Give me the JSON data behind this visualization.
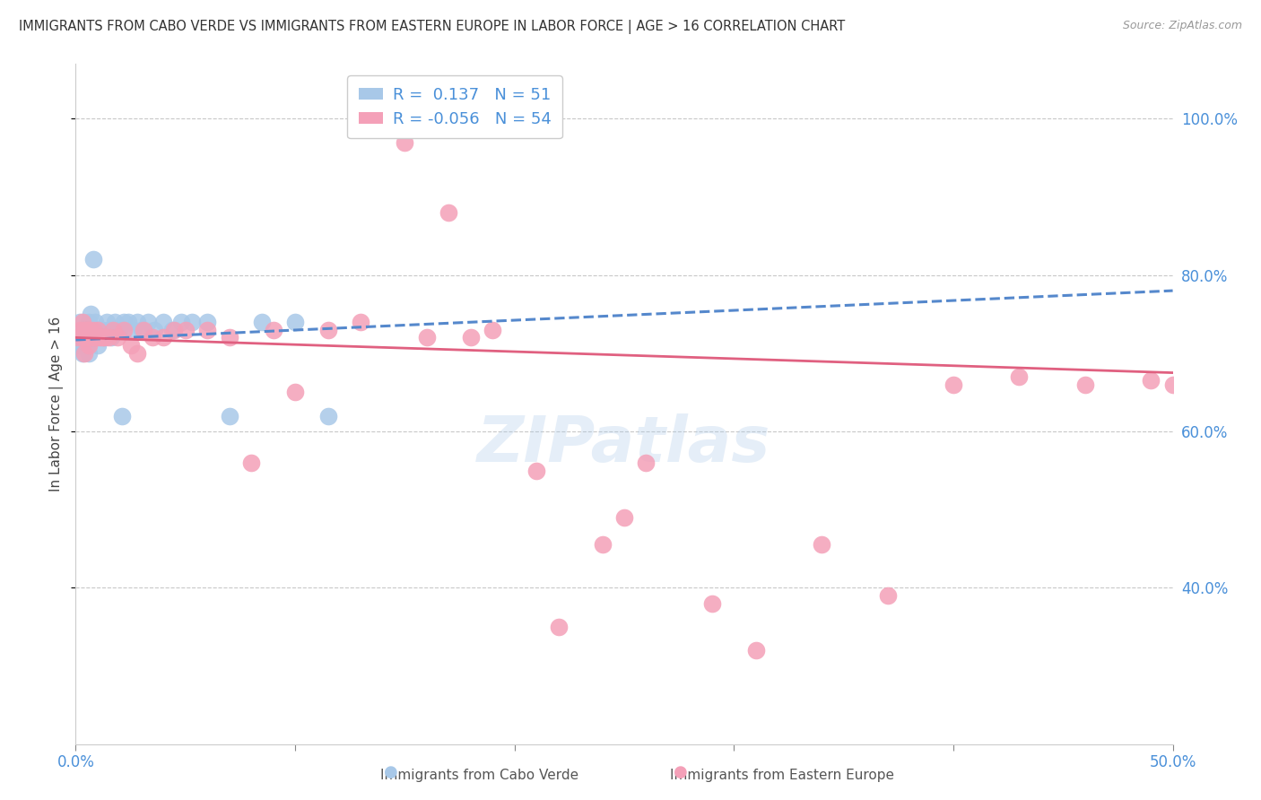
{
  "title": "IMMIGRANTS FROM CABO VERDE VS IMMIGRANTS FROM EASTERN EUROPE IN LABOR FORCE | AGE > 16 CORRELATION CHART",
  "source": "Source: ZipAtlas.com",
  "ylabel": "In Labor Force | Age > 16",
  "xlabel_cabo": "Immigrants from Cabo Verde",
  "xlabel_eastern": "Immigrants from Eastern Europe",
  "xlim": [
    0.0,
    0.5
  ],
  "ylim": [
    0.2,
    1.07
  ],
  "yticks": [
    0.4,
    0.6,
    0.8,
    1.0
  ],
  "ytick_labels": [
    "40.0%",
    "60.0%",
    "80.0%",
    "100.0%"
  ],
  "xticks": [
    0.0,
    0.1,
    0.2,
    0.3,
    0.4,
    0.5
  ],
  "xtick_labels": [
    "0.0%",
    "",
    "",
    "",
    "",
    "50.0%"
  ],
  "R_cabo": 0.137,
  "N_cabo": 51,
  "R_eastern": -0.056,
  "N_eastern": 54,
  "color_cabo": "#a8c8e8",
  "color_eastern": "#f4a0b8",
  "line_color_cabo": "#5588cc",
  "line_color_eastern": "#e06080",
  "cabo_x": [
    0.001,
    0.002,
    0.002,
    0.003,
    0.003,
    0.003,
    0.004,
    0.004,
    0.004,
    0.005,
    0.005,
    0.005,
    0.006,
    0.006,
    0.006,
    0.007,
    0.007,
    0.007,
    0.008,
    0.008,
    0.009,
    0.009,
    0.01,
    0.01,
    0.011,
    0.012,
    0.013,
    0.014,
    0.015,
    0.016,
    0.017,
    0.018,
    0.019,
    0.02,
    0.021,
    0.022,
    0.024,
    0.026,
    0.028,
    0.03,
    0.033,
    0.036,
    0.04,
    0.044,
    0.048,
    0.053,
    0.06,
    0.07,
    0.085,
    0.1,
    0.115
  ],
  "cabo_y": [
    0.72,
    0.74,
    0.71,
    0.73,
    0.72,
    0.7,
    0.73,
    0.72,
    0.71,
    0.73,
    0.72,
    0.71,
    0.74,
    0.72,
    0.7,
    0.75,
    0.73,
    0.72,
    0.82,
    0.73,
    0.74,
    0.72,
    0.73,
    0.71,
    0.73,
    0.73,
    0.72,
    0.74,
    0.73,
    0.72,
    0.73,
    0.74,
    0.73,
    0.73,
    0.62,
    0.74,
    0.74,
    0.73,
    0.74,
    0.73,
    0.74,
    0.73,
    0.74,
    0.73,
    0.74,
    0.74,
    0.74,
    0.62,
    0.74,
    0.74,
    0.62
  ],
  "eastern_x": [
    0.001,
    0.002,
    0.003,
    0.003,
    0.004,
    0.004,
    0.005,
    0.005,
    0.006,
    0.006,
    0.007,
    0.008,
    0.009,
    0.01,
    0.011,
    0.012,
    0.013,
    0.015,
    0.017,
    0.019,
    0.022,
    0.025,
    0.028,
    0.031,
    0.035,
    0.04,
    0.045,
    0.05,
    0.06,
    0.07,
    0.08,
    0.09,
    0.1,
    0.115,
    0.13,
    0.15,
    0.17,
    0.19,
    0.21,
    0.24,
    0.26,
    0.29,
    0.31,
    0.34,
    0.37,
    0.4,
    0.43,
    0.46,
    0.49,
    0.5,
    0.22,
    0.25,
    0.18,
    0.16
  ],
  "eastern_y": [
    0.72,
    0.73,
    0.74,
    0.72,
    0.73,
    0.7,
    0.73,
    0.72,
    0.71,
    0.73,
    0.72,
    0.73,
    0.72,
    0.73,
    0.72,
    0.72,
    0.72,
    0.72,
    0.73,
    0.72,
    0.73,
    0.71,
    0.7,
    0.73,
    0.72,
    0.72,
    0.73,
    0.73,
    0.73,
    0.72,
    0.56,
    0.73,
    0.65,
    0.73,
    0.74,
    0.97,
    0.88,
    0.73,
    0.55,
    0.455,
    0.56,
    0.38,
    0.32,
    0.455,
    0.39,
    0.66,
    0.67,
    0.66,
    0.665,
    0.66,
    0.35,
    0.49,
    0.72,
    0.72
  ],
  "trend_blue_x0": 0.0,
  "trend_blue_y0": 0.717,
  "trend_blue_x1": 0.5,
  "trend_blue_y1": 0.78,
  "trend_pink_x0": 0.0,
  "trend_pink_y0": 0.72,
  "trend_pink_x1": 0.5,
  "trend_pink_y1": 0.675,
  "watermark": "ZIPatlas",
  "background_color": "#ffffff",
  "grid_color": "#c8c8c8",
  "tick_label_color": "#4a90d9",
  "title_color": "#333333"
}
